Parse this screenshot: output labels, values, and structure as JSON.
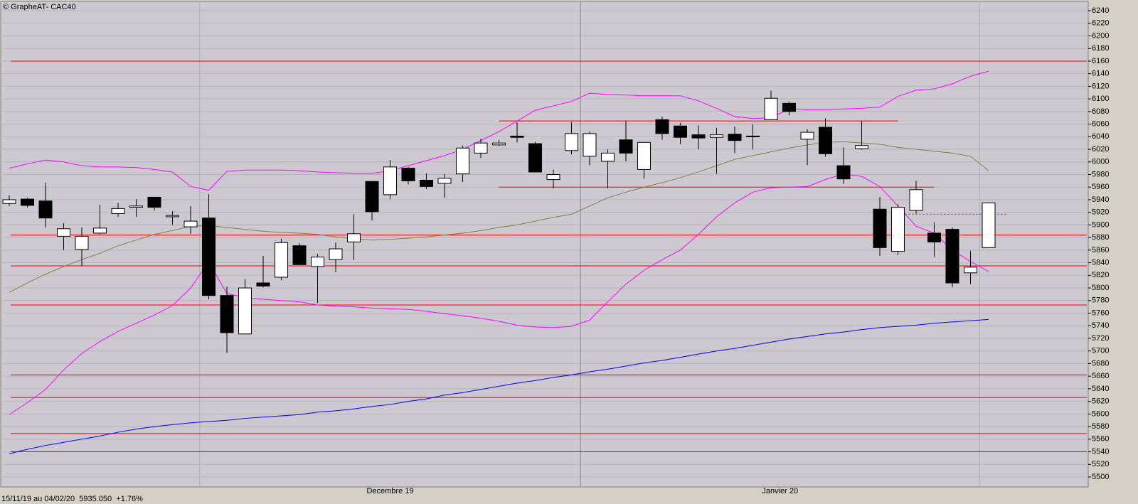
{
  "chart_data": {
    "type": "candlestick",
    "title": "© GrapheAT- CAC40",
    "footer": "15/11/19 au 04/02/20  5935.050  +1.76%",
    "months": [
      {
        "label": "Decembre 19",
        "start": 11,
        "end": 32
      },
      {
        "label": "Janvier 20",
        "start": 32,
        "end": 54
      }
    ],
    "ylim": [
      5485,
      6253
    ],
    "yticks": [
      5500,
      5520,
      5540,
      5560,
      5580,
      5600,
      5620,
      5640,
      5660,
      5680,
      5700,
      5720,
      5740,
      5760,
      5780,
      5800,
      5820,
      5840,
      5860,
      5880,
      5900,
      5920,
      5940,
      5960,
      5980,
      6000,
      6020,
      6040,
      6060,
      6080,
      6100,
      6120,
      6140,
      6160,
      6180,
      6200,
      6220,
      6240
    ],
    "grid": true,
    "up_color": "#ffffff",
    "down_color": "#000000",
    "open": [
      5934,
      5941,
      5938,
      5882,
      5861,
      5887,
      5918,
      5928,
      5944,
      5913,
      5897,
      5911,
      5788,
      5727,
      5808,
      5817,
      5867,
      5834,
      5845,
      5873,
      5969,
      5948,
      5990,
      5971,
      5966,
      5981,
      6014,
      6027,
      6041,
      6029,
      5972,
      6018,
      6009,
      6001,
      6035,
      5988,
      6067,
      6057,
      6043,
      6039,
      6044,
      6041,
      6067,
      6093,
      6036,
      6055,
      5994,
      6021,
      5925,
      5858,
      5923,
      5887,
      5893,
      5824,
      5864
    ],
    "high": [
      5947,
      5943,
      5967,
      5903,
      5896,
      5932,
      5935,
      5941,
      5944,
      5922,
      5930,
      5949,
      5802,
      5814,
      5851,
      5878,
      5871,
      5854,
      5872,
      5917,
      5969,
      6003,
      5992,
      5982,
      5981,
      6026,
      6037,
      6035,
      6063,
      6032,
      5988,
      6063,
      6048,
      6020,
      6065,
      6031,
      6072,
      6062,
      6058,
      6054,
      6056,
      6060,
      6113,
      6096,
      6052,
      6069,
      6023,
      6065,
      5944,
      5933,
      5970,
      5904,
      5896,
      5859,
      5935
    ],
    "low": [
      5930,
      5928,
      5896,
      5860,
      5835,
      5885,
      5913,
      5913,
      5923,
      5900,
      5886,
      5782,
      5697,
      5727,
      5801,
      5812,
      5837,
      5776,
      5825,
      5844,
      5907,
      5941,
      5964,
      5957,
      5943,
      5968,
      6006,
      6025,
      6031,
      5984,
      5958,
      6012,
      5995,
      5958,
      6001,
      5973,
      6035,
      6028,
      6020,
      5981,
      6014,
      6020,
      6067,
      6074,
      5995,
      6008,
      5965,
      6019,
      5851,
      5852,
      5918,
      5849,
      5801,
      5806,
      5864
    ],
    "close": [
      5940,
      5931,
      5911,
      5894,
      5882,
      5895,
      5926,
      5930,
      5928,
      5915,
      5906,
      5788,
      5729,
      5800,
      5803,
      5872,
      5837,
      5849,
      5862,
      5886,
      5921,
      5992,
      5970,
      5961,
      5974,
      6022,
      6030,
      6030,
      6039,
      5984,
      5980,
      6045,
      6045,
      6014,
      6014,
      6031,
      6045,
      6039,
      6038,
      6043,
      6034,
      6041,
      6101,
      6080,
      6047,
      6013,
      5973,
      6026,
      5864,
      5928,
      5956,
      5873,
      5808,
      5833,
      5935
    ],
    "series": [
      {
        "color": "#ff00ff",
        "values": [
          5990,
          5997,
          6003,
          6000,
          5994,
          5992,
          5992,
          5991,
          5988,
          5984,
          5961,
          5955,
          5985,
          5987,
          5987,
          5987,
          5986,
          5984,
          5983,
          5982,
          5982,
          5986,
          5994,
          6002,
          6010,
          6020,
          6034,
          6048,
          6065,
          6082,
          6089,
          6096,
          6109,
          6107,
          6106,
          6105,
          6105,
          6105,
          6097,
          6085,
          6072,
          6069,
          6070,
          6084,
          6083,
          6083,
          6084,
          6085,
          6087,
          6104,
          6114,
          6116,
          6124,
          6136,
          6144
        ]
      },
      {
        "color": "#808040",
        "values": [
          5793,
          5808,
          5822,
          5834,
          5845,
          5855,
          5867,
          5876,
          5885,
          5891,
          5898,
          5899,
          5896,
          5893,
          5890,
          5888,
          5887,
          5885,
          5881,
          5878,
          5876,
          5877,
          5879,
          5881,
          5884,
          5887,
          5891,
          5896,
          5900,
          5906,
          5912,
          5917,
          5930,
          5943,
          5952,
          5960,
          5967,
          5975,
          5984,
          5994,
          6004,
          6010,
          6016,
          6022,
          6027,
          6031,
          6032,
          6030,
          6028,
          6023,
          6020,
          6017,
          6014,
          6009,
          5986
        ]
      },
      {
        "color": "#ff00ff",
        "values": [
          5599,
          5618,
          5639,
          5670,
          5696,
          5715,
          5731,
          5744,
          5757,
          5772,
          5800,
          5841,
          5791,
          5785,
          5782,
          5780,
          5778,
          5773,
          5771,
          5770,
          5768,
          5767,
          5766,
          5763,
          5759,
          5756,
          5752,
          5747,
          5741,
          5738,
          5737,
          5739,
          5749,
          5778,
          5806,
          5828,
          5845,
          5860,
          5885,
          5913,
          5935,
          5952,
          5959,
          5960,
          5961,
          5972,
          5981,
          5977,
          5961,
          5930,
          5898,
          5887,
          5860,
          5842,
          5826
        ]
      },
      {
        "color": "#0000ff",
        "values": [
          5537,
          5544,
          5550,
          5555,
          5560,
          5565,
          5571,
          5576,
          5580,
          5583,
          5586,
          5588,
          5590,
          5593,
          5595,
          5597,
          5599,
          5603,
          5605,
          5608,
          5612,
          5615,
          5620,
          5624,
          5630,
          5634,
          5639,
          5644,
          5649,
          5653,
          5658,
          5662,
          5667,
          5671,
          5676,
          5681,
          5685,
          5690,
          5695,
          5700,
          5704,
          5709,
          5714,
          5719,
          5723,
          5727,
          5730,
          5734,
          5737,
          5739,
          5741,
          5744,
          5746,
          5748,
          5750
        ]
      }
    ],
    "levels": {
      "color": "#ff0000",
      "values": [
        6160,
        5884,
        5835,
        5773,
        5662,
        5626,
        5569,
        5540
      ]
    },
    "segments": [
      {
        "value": 6065,
        "from": 27,
        "to": 49,
        "style": "solid"
      },
      {
        "value": 5960,
        "from": 27,
        "to": 51,
        "style": "solid"
      },
      {
        "value": 5917,
        "from": 49,
        "to": 55,
        "style": "dotted"
      }
    ]
  }
}
